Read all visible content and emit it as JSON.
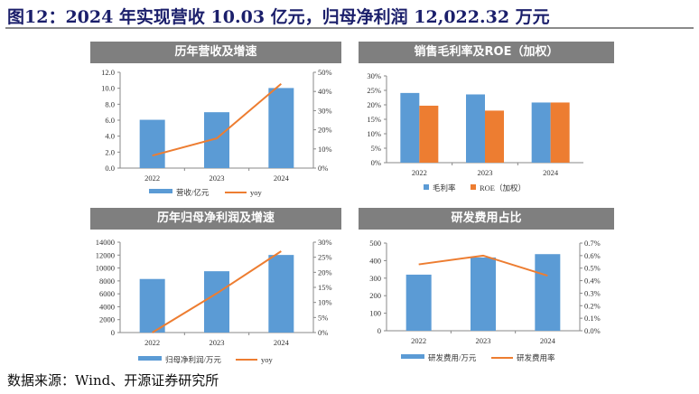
{
  "title": "图12：2024 年实现营收 10.03 亿元，归母净利润 12,022.32 万元",
  "footer": "数据来源：Wind、开源证券研究所",
  "colors": {
    "bar_blue": "#5b9bd5",
    "orange": "#ed7d31",
    "title_bar": "#7f7f7f",
    "title_text": "#1b1f6b"
  },
  "chart_data": [
    {
      "type": "bar+line",
      "title": "历年营收及增速",
      "categories": [
        "2022",
        "2023",
        "2024"
      ],
      "left_axis": {
        "ticks": [
          "0.0",
          "2.0",
          "4.0",
          "6.0",
          "8.0",
          "10.0",
          "12.0"
        ],
        "range": [
          0,
          12
        ]
      },
      "right_axis": {
        "ticks": [
          "0%",
          "10%",
          "20%",
          "30%",
          "40%",
          "50%"
        ],
        "range": [
          0,
          50
        ]
      },
      "bars": [
        {
          "name": "营收/亿元",
          "values": [
            6.05,
            7.0,
            10.03
          ],
          "color": "#5b9bd5"
        }
      ],
      "lines": [
        {
          "name": "yoy",
          "values": [
            6.5,
            15.5,
            44
          ],
          "axis": "right",
          "color": "#ed7d31"
        }
      ],
      "legend": "bottom"
    },
    {
      "type": "bar",
      "title": "销售毛利率及ROE（加权）",
      "categories": [
        "2022",
        "2023",
        "2024"
      ],
      "left_axis": {
        "ticks": [
          "0%",
          "5%",
          "10%",
          "15%",
          "20%",
          "25%",
          "30%"
        ],
        "range": [
          0,
          30
        ]
      },
      "bars": [
        {
          "name": "毛利率",
          "values": [
            24.1,
            23.6,
            20.8
          ],
          "color": "#5b9bd5"
        },
        {
          "name": "ROE（加权）",
          "values": [
            19.7,
            18.0,
            20.8
          ],
          "color": "#ed7d31"
        }
      ],
      "lines": [],
      "legend": "bottom"
    },
    {
      "type": "bar+line",
      "title": "历年归母净利润及增速",
      "categories": [
        "2022",
        "2023",
        "2024"
      ],
      "left_axis": {
        "ticks": [
          "0",
          "2000",
          "4000",
          "6000",
          "8000",
          "10000",
          "12000",
          "14000"
        ],
        "range": [
          0,
          14000
        ]
      },
      "right_axis": {
        "ticks": [
          "0%",
          "5%",
          "10%",
          "15%",
          "20%",
          "25%",
          "30%"
        ],
        "range": [
          0,
          30
        ]
      },
      "bars": [
        {
          "name": "归母净利润/万元",
          "values": [
            8300,
            9500,
            12022.32
          ],
          "color": "#5b9bd5"
        }
      ],
      "lines": [
        {
          "name": "yoy",
          "values": [
            0,
            13,
            27
          ],
          "axis": "right",
          "color": "#ed7d31"
        }
      ],
      "legend": "bottom"
    },
    {
      "type": "bar+line",
      "title": "研发费用占比",
      "categories": [
        "2022",
        "2023",
        "2024"
      ],
      "left_axis": {
        "ticks": [
          "0",
          "100",
          "200",
          "300",
          "400",
          "500"
        ],
        "range": [
          0,
          500
        ]
      },
      "right_axis": {
        "ticks": [
          "0.0%",
          "0.1%",
          "0.2%",
          "0.3%",
          "0.4%",
          "0.5%",
          "0.6%",
          "0.7%"
        ],
        "range": [
          0,
          0.7
        ]
      },
      "bars": [
        {
          "name": "研发费用/万元",
          "values": [
            320,
            418,
            437
          ],
          "color": "#5b9bd5"
        }
      ],
      "lines": [
        {
          "name": "研发费用率",
          "values": [
            0.53,
            0.6,
            0.44
          ],
          "axis": "right",
          "color": "#ed7d31"
        }
      ],
      "legend": "bottom"
    }
  ]
}
